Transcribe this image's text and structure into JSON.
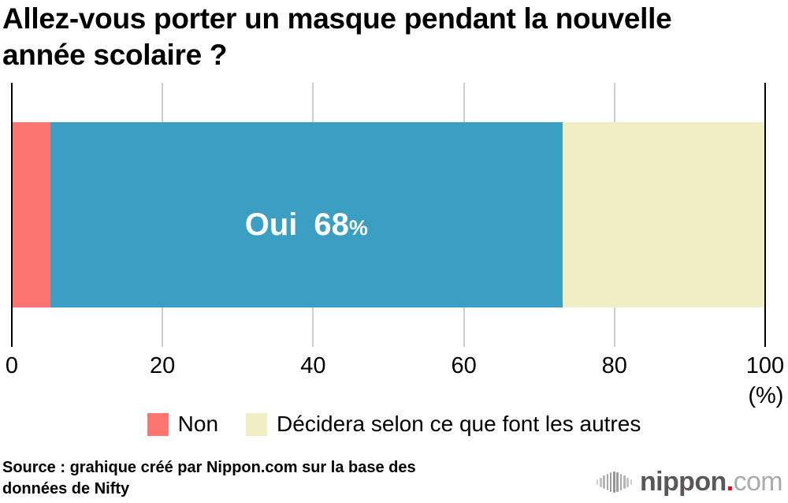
{
  "page": {
    "title": "Allez-vous porter un masque pendant la nouvelle année scolaire ?",
    "source": "Source : grahique créé par Nippon.com sur la base des données de Nifty",
    "brand": {
      "name": "nippon",
      "dot": ".",
      "tld": "com"
    }
  },
  "chart_data": {
    "type": "bar",
    "orientation": "horizontal_stacked",
    "title": "Allez-vous porter un masque pendant la nouvelle année scolaire ?",
    "series": [
      {
        "name": "Non",
        "value": 5,
        "color": "#fc7571"
      },
      {
        "name": "Oui",
        "value": 68,
        "color": "#3a9fc3"
      },
      {
        "name": "Décidera selon ce que font les autres",
        "value": 27,
        "color": "#f0eec4"
      }
    ],
    "xlim": [
      0,
      100
    ],
    "ticks": [
      0,
      20,
      40,
      60,
      80,
      100
    ],
    "unit_label": "(%)",
    "bar_label": {
      "series": "Oui",
      "text": "Oui",
      "value": "68",
      "unit": "%"
    },
    "legend": [
      {
        "label": "Non",
        "color": "#fc7571"
      },
      {
        "label": "Décidera selon ce que font les autres",
        "color": "#f0eec4"
      }
    ],
    "grid_color": "#cfcfcf",
    "axis_color": "#000000",
    "legend_position": "bottom",
    "grid": true
  }
}
